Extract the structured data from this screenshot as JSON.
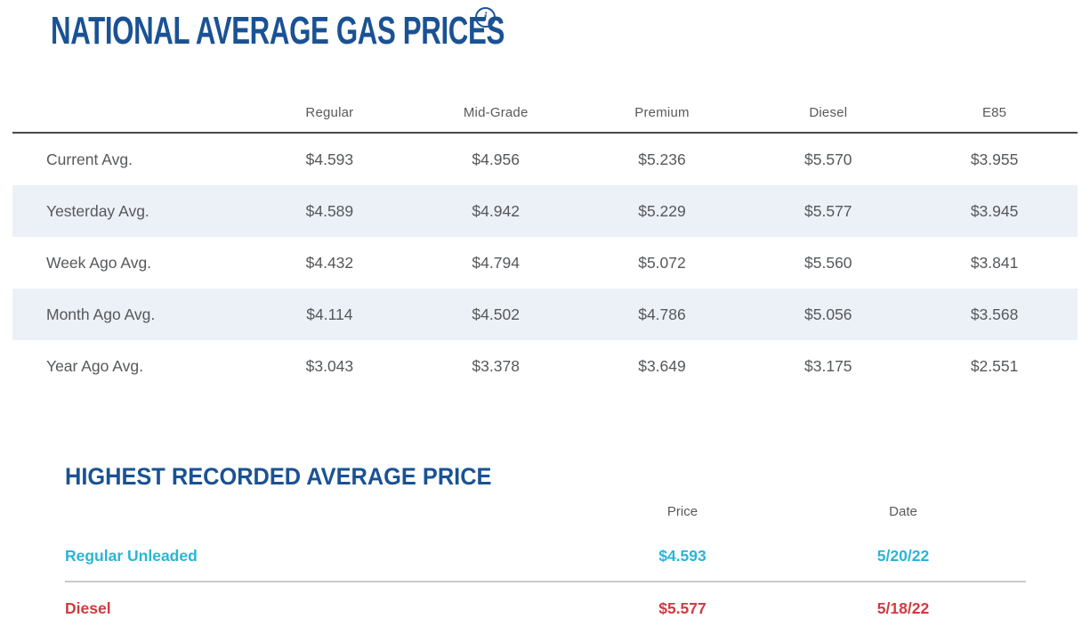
{
  "colors": {
    "navy": "#1a5294",
    "teal": "#29b5d8",
    "red": "#cd3c42",
    "stripe": "#ecf1f7",
    "body_text": "#55585b",
    "header_text": "#58595b"
  },
  "title": "NATIONAL AVERAGE GAS PRICES",
  "info_icon_glyph": "i",
  "gas_table": {
    "columns": [
      "Regular",
      "Mid-Grade",
      "Premium",
      "Diesel",
      "E85"
    ],
    "rows": [
      {
        "label": "Current Avg.",
        "values": [
          "$4.593",
          "$4.956",
          "$5.236",
          "$5.570",
          "$3.955"
        ]
      },
      {
        "label": "Yesterday Avg.",
        "values": [
          "$4.589",
          "$4.942",
          "$5.229",
          "$5.577",
          "$3.945"
        ]
      },
      {
        "label": "Week Ago Avg.",
        "values": [
          "$4.432",
          "$4.794",
          "$5.072",
          "$5.560",
          "$3.841"
        ]
      },
      {
        "label": "Month Ago Avg.",
        "values": [
          "$4.114",
          "$4.502",
          "$4.786",
          "$5.056",
          "$3.568"
        ]
      },
      {
        "label": "Year Ago Avg.",
        "values": [
          "$3.043",
          "$3.378",
          "$3.649",
          "$3.175",
          "$2.551"
        ]
      }
    ]
  },
  "highest_recorded": {
    "title": "HIGHEST RECORDED AVERAGE PRICE",
    "columns": [
      "Price",
      "Date"
    ],
    "rows": [
      {
        "label": "Regular Unleaded",
        "price": "$4.593",
        "date": "5/20/22",
        "color": "#29b5d8"
      },
      {
        "label": "Diesel",
        "price": "$5.577",
        "date": "5/18/22",
        "color": "#cd3c42"
      }
    ]
  }
}
